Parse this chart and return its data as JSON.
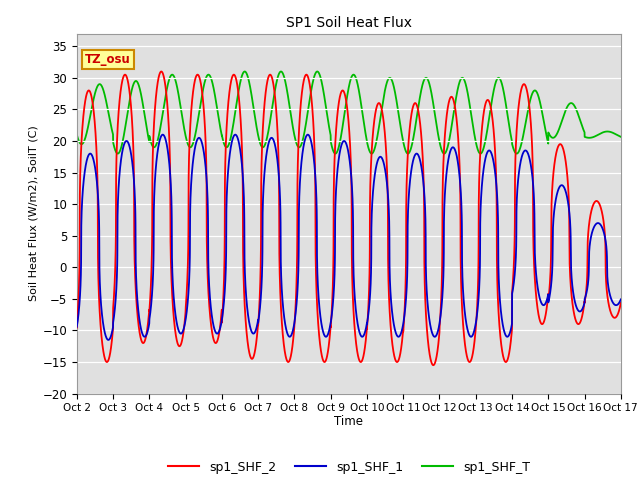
{
  "title": "SP1 Soil Heat Flux",
  "xlabel": "Time",
  "ylabel": "Soil Heat Flux (W/m2), SoilT (C)",
  "ylim": [
    -20,
    37
  ],
  "yticks": [
    -20,
    -15,
    -10,
    -5,
    0,
    5,
    10,
    15,
    20,
    25,
    30,
    35
  ],
  "xtick_labels": [
    "Oct 2",
    "Oct 3",
    "Oct 4",
    "Oct 5",
    "Oct 6",
    "Oct 7",
    "Oct 8",
    "Oct 9",
    "Oct 10",
    "Oct 11",
    "Oct 12",
    "Oct 13",
    "Oct 14",
    "Oct 15",
    "Oct 16",
    "Oct 17"
  ],
  "color_shf2": "#ff0000",
  "color_shf1": "#0000cc",
  "color_shfT": "#00bb00",
  "bg_color": "#e0e0e0",
  "annotation_text": "TZ_osu",
  "annotation_bg": "#ffff99",
  "annotation_border": "#cc8800",
  "legend_labels": [
    "sp1_SHF_2",
    "sp1_SHF_1",
    "sp1_SHF_T"
  ],
  "num_days": 15,
  "shf2_peaks": [
    28.0,
    30.5,
    31.0,
    30.5,
    30.5,
    30.5,
    30.5,
    28.0,
    26.0,
    26.0,
    27.0,
    26.5,
    29.0,
    19.5,
    10.5
  ],
  "shf2_troughs": [
    -15.0,
    -12.0,
    -12.5,
    -12.0,
    -14.5,
    -15.0,
    -15.0,
    -15.0,
    -15.0,
    -15.5,
    -15.0,
    -15.0,
    -9.0,
    -9.0,
    -8.0
  ],
  "shf1_peaks": [
    18.0,
    20.0,
    21.0,
    20.5,
    21.0,
    20.5,
    21.0,
    20.0,
    17.5,
    18.0,
    19.0,
    18.5,
    18.5,
    13.0,
    7.0
  ],
  "shf1_troughs": [
    -11.5,
    -11.0,
    -10.5,
    -10.5,
    -10.5,
    -11.0,
    -11.0,
    -11.0,
    -11.0,
    -11.0,
    -11.0,
    -11.0,
    -6.0,
    -7.0,
    -6.0
  ],
  "shfT_peaks": [
    29.0,
    29.5,
    30.5,
    30.5,
    31.0,
    31.0,
    31.0,
    30.5,
    30.0,
    30.0,
    30.0,
    30.0,
    28.0,
    26.0,
    21.5
  ],
  "shfT_troughs": [
    19.5,
    18.0,
    19.0,
    19.0,
    19.0,
    19.0,
    19.0,
    18.0,
    18.0,
    18.0,
    18.0,
    18.0,
    18.0,
    20.5,
    20.5
  ],
  "shf2_phase": 0.08,
  "shf1_phase": 0.12,
  "shfT_phase": 0.38,
  "sharpness": 2.5
}
